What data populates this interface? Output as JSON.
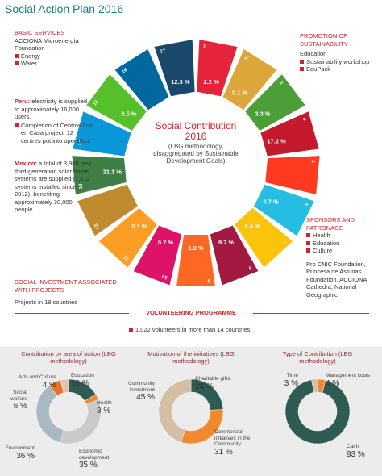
{
  "header": {
    "title": "Social Action Plan 2016"
  },
  "basic_services": {
    "heading": "BASIC SERVICES",
    "org": "ACCIONA Microenergía Foundation",
    "items": [
      "Energy",
      "Water"
    ]
  },
  "peru": {
    "label": "Peru:",
    "text": "electricity is supplied to approximately 16,000 users.",
    "bullet": "Completion of Centros Luz en Casa project: 12 centres put into operation."
  },
  "mexico": {
    "label": "Mexico:",
    "text": "a total of 3,900 new third-generation solar home systems are supplied (7,512 systems installed since 2012), benefiting approximately 30,000 people."
  },
  "promotion": {
    "heading": "PROMOTION OF SUSTAINABILITY",
    "subheading": "Education",
    "items": [
      "Sustainability workshop",
      "EduPack"
    ]
  },
  "sponsors": {
    "heading": "SPONSORS AND PATRONAGE",
    "items": [
      "Health",
      "Education",
      "Culture"
    ],
    "text": "Pro CNIC Foundation, Princesa de Asturias Foundation, ACCIONA Cathedra, National Geographic."
  },
  "center": {
    "title": "Social Contribution 2016",
    "subtitle": "(LBG methodology, disaggregated by Sustainable Development Goals)"
  },
  "wheel": {
    "goals": [
      {
        "number": "1",
        "color": "#E5243B",
        "label": "2.2 %"
      },
      {
        "number": "2",
        "color": "#DDA63A",
        "label": "0.1 %"
      },
      {
        "number": "3",
        "color": "#4C9F38",
        "label": "3.3 %"
      },
      {
        "number": "4",
        "color": "#C5192D",
        "label": "17.2 %"
      },
      {
        "number": "5",
        "color": "#FF3A21"
      },
      {
        "number": "6",
        "color": "#26BDE2",
        "label": "6.7 %"
      },
      {
        "number": "7",
        "color": "#FCC30B",
        "label": "8.4 %"
      },
      {
        "number": "8",
        "color": "#A21942",
        "label": "9.7 %"
      },
      {
        "number": "9",
        "color": "#FD6925",
        "label": "1.9 %"
      },
      {
        "number": "10",
        "color": "#DD1367",
        "label": "0.2 %"
      },
      {
        "number": "11",
        "color": "#FD9D24",
        "label": "0.1 %"
      },
      {
        "number": "12",
        "color": "#BF8B2E"
      },
      {
        "number": "13",
        "color": "#3F7E44",
        "label": "21.1 %"
      },
      {
        "number": "14",
        "color": "#0A97D9"
      },
      {
        "number": "15",
        "color": "#56C02B",
        "label": "9.5 %"
      },
      {
        "number": "16",
        "color": "#00689D"
      },
      {
        "number": "17",
        "color": "#19486A",
        "label": "12.3 %"
      }
    ]
  },
  "social_investment": {
    "heading": "SOCIAL INVESTMENT ASSOCIATED WITH PROJECTS",
    "text": "Projects in 18 countries"
  },
  "volunteering": {
    "heading": "VOLUNTEERING PROGRAMME",
    "text": "1,022 volunteers in more than 14 countries."
  },
  "chart_data": [
    {
      "type": "pie",
      "title": "Contribution by area of action (LBG methodology)",
      "categories": [
        "Education",
        "Health",
        "Economic development",
        "Environment",
        "Social welfare",
        "Arts and Culture"
      ],
      "values": [
        16,
        3,
        35,
        36,
        6,
        4
      ],
      "value_labels": [
        "16 %",
        "3 %",
        "35 %",
        "36 %",
        "6 %",
        "4 %"
      ],
      "colors": [
        "#2e5b52",
        "#f08a2c",
        "#c9cbcb",
        "#a9b9c1",
        "#e8732a",
        "#dcc6aa"
      ]
    },
    {
      "type": "pie",
      "title": "Motivation of the initiatives (LBG methodology)",
      "categories": [
        "Charitable gifts",
        "Commercial initiatives in the Community",
        "Community investment"
      ],
      "values": [
        24,
        31,
        45
      ],
      "value_labels": [
        "24 %",
        "31 %",
        "45 %"
      ],
      "colors": [
        "#2e5b52",
        "#f08a2c",
        "#d4bfa3"
      ]
    },
    {
      "type": "pie",
      "title": "Type of Contribution (LBG methodology)",
      "categories": [
        "Management costs",
        "Cash",
        "Time"
      ],
      "values": [
        4,
        93,
        3
      ],
      "value_labels": [
        "4 %",
        "93 %",
        "3 %"
      ],
      "colors": [
        "#f08a2c",
        "#2e5b52",
        "#d4bfa3"
      ]
    }
  ]
}
